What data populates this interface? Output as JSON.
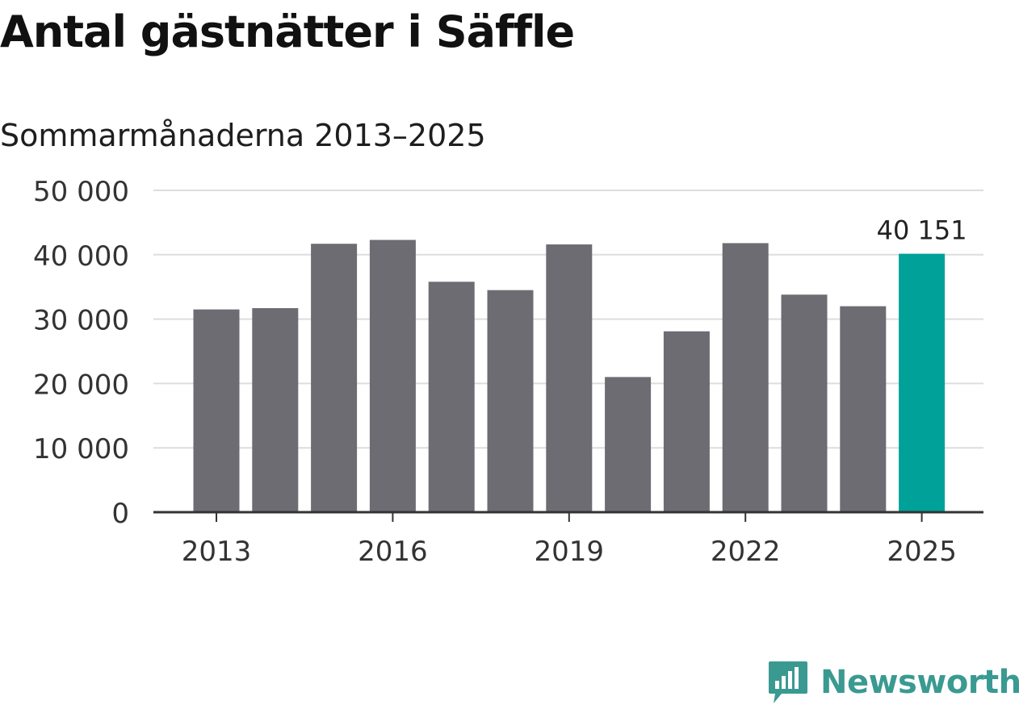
{
  "header": {
    "title": "Antal gästnätter i Säffle",
    "subtitle": "Sommarmånaderna 2013–2025"
  },
  "branding": {
    "name": "Newsworthy",
    "icon": "newsworthy-logo-icon",
    "color": "#3a9a92"
  },
  "colors": {
    "bar": "#6d6c73",
    "highlight": "#00a199",
    "grid": "#dddddd",
    "axis": "#333333"
  },
  "chart_data": {
    "type": "bar",
    "title": "Antal gästnätter i Säffle",
    "subtitle": "Sommarmånaderna 2013–2025",
    "xlabel": "",
    "ylabel": "",
    "categories": [
      "2013",
      "2014",
      "2015",
      "2016",
      "2017",
      "2018",
      "2019",
      "2020",
      "2021",
      "2022",
      "2023",
      "2024",
      "2025"
    ],
    "values": [
      31500,
      31700,
      41700,
      42300,
      35800,
      34500,
      41600,
      21000,
      28100,
      41800,
      33800,
      32000,
      40151
    ],
    "highlight_index": 12,
    "data_labels": [
      {
        "index": 12,
        "text": "40 151"
      }
    ],
    "x_tick_labels": [
      "2013",
      "2016",
      "2019",
      "2022",
      "2025"
    ],
    "y_ticks": [
      0,
      10000,
      20000,
      30000,
      40000,
      50000
    ],
    "y_tick_labels": [
      "0",
      "10 000",
      "20 000",
      "30 000",
      "40 000",
      "50 000"
    ],
    "ylim": [
      0,
      50000
    ],
    "grid": true,
    "legend": "none"
  }
}
